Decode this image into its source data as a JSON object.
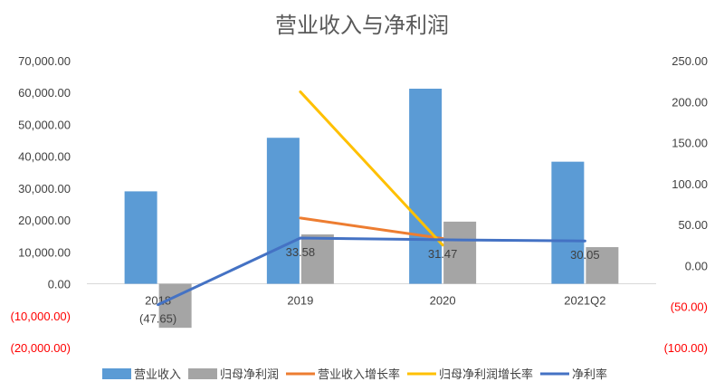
{
  "chart_data": {
    "type": "bar",
    "title": "营业收入与净利润",
    "categories": [
      "2018",
      "2019",
      "2020",
      "2021Q2"
    ],
    "y_left": {
      "range": [
        -20000,
        70000
      ],
      "ticks": [
        "(20,000.00)",
        "(10,000.00)",
        "0.00",
        "10,000.00",
        "20,000.00",
        "30,000.00",
        "40,000.00",
        "50,000.00",
        "60,000.00",
        "70,000.00"
      ]
    },
    "y_right": {
      "range": [
        -100,
        250
      ],
      "ticks": [
        "(100.00)",
        "(50.00)",
        "0.00",
        "50.00",
        "100.00",
        "150.00",
        "200.00",
        "250.00"
      ]
    },
    "negative_tick_color": "#ff0000",
    "positive_tick_color": "#404040",
    "series": [
      {
        "name": "营业收入",
        "type": "bar",
        "axis": "left",
        "color": "#5b9bd5",
        "values": [
          29000,
          45800,
          61200,
          38300
        ]
      },
      {
        "name": "归母净利润",
        "type": "bar",
        "axis": "left",
        "color": "#a5a5a5",
        "values": [
          -13800,
          15500,
          19500,
          11500
        ]
      },
      {
        "name": "营业收入增长率",
        "type": "line",
        "axis": "right",
        "color": "#ed7d31",
        "values": [
          null,
          58,
          33,
          null
        ]
      },
      {
        "name": "归母净利润增长率",
        "type": "line",
        "axis": "right",
        "color": "#ffc000",
        "values": [
          null,
          212,
          25,
          null
        ]
      },
      {
        "name": "净利率",
        "type": "line",
        "axis": "right",
        "color": "#4472c4",
        "values": [
          -47.65,
          33.58,
          31.47,
          30.05
        ]
      }
    ],
    "data_labels": [
      {
        "series": "净利率",
        "index": 0,
        "text": "(47.65)",
        "color": "#ff0000"
      },
      {
        "series": "净利率",
        "index": 1,
        "text": "33.58",
        "color": "#404040"
      },
      {
        "series": "净利率",
        "index": 2,
        "text": "31.47",
        "color": "#404040"
      },
      {
        "series": "净利率",
        "index": 3,
        "text": "30.05",
        "color": "#404040"
      }
    ],
    "legend_position": "bottom",
    "grid": false
  }
}
